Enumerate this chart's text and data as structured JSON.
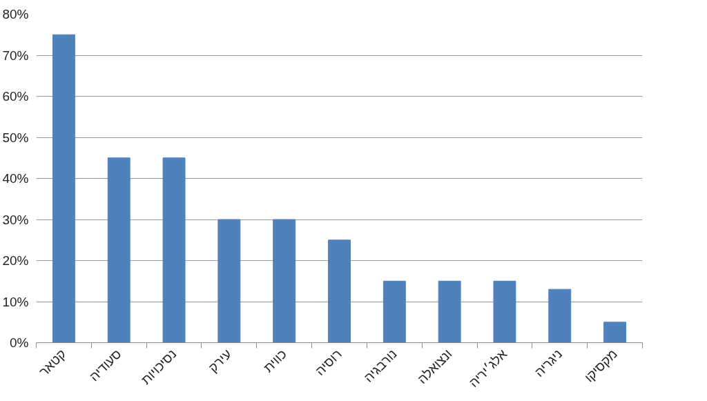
{
  "chart_data": {
    "type": "bar",
    "categories": [
      "קטאר",
      "סעודיה",
      "נסיכויות",
      "עירק",
      "כווית",
      "רוסיה",
      "נורבגיה",
      "ונצואלה",
      "אלג׳יריה",
      "ניגריה",
      "מקסיקו"
    ],
    "values": [
      75,
      45,
      45,
      30,
      30,
      25,
      15,
      15,
      15,
      13,
      5
    ],
    "color": "#4f81bd",
    "ylim": [
      0,
      80
    ],
    "yticks": [
      {
        "value": 0,
        "label": "0%"
      },
      {
        "value": 10,
        "label": "10%"
      },
      {
        "value": 20,
        "label": "20%"
      },
      {
        "value": 30,
        "label": "30%"
      },
      {
        "value": 40,
        "label": "40%"
      },
      {
        "value": 50,
        "label": "50%"
      },
      {
        "value": 60,
        "label": "60%"
      },
      {
        "value": 70,
        "label": "70%"
      },
      {
        "value": 80,
        "label": "80%"
      }
    ],
    "grid": "y"
  }
}
